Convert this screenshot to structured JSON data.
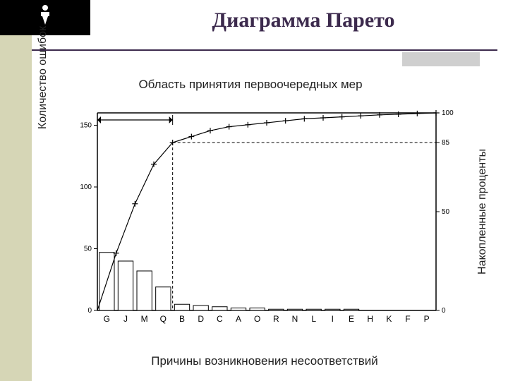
{
  "page": {
    "title": "Диаграмма Парето",
    "background": "#ffffff",
    "strip_color": "#d6d6b6",
    "hr_color": "#3c2a4d",
    "grey_block": "#cfcfcf"
  },
  "chart": {
    "type": "pareto",
    "title": "Область принятия первоочередных мер",
    "ylabel_left": "Количество ошибок",
    "ylabel_right": "Накопленные проценты",
    "xlabel": "Причины возникновения несоответствий",
    "title_fontsize": 17,
    "label_fontsize": 16,
    "tick_fontsize": 10,
    "background_color": "#ffffff",
    "axis_color": "#000000",
    "bar_fill": "#ffffff",
    "bar_stroke": "#000000",
    "line_color": "#000000",
    "dash_color": "#000000",
    "arrow_color": "#000000",
    "categories": [
      "G",
      "J",
      "M",
      "Q",
      "B",
      "D",
      "C",
      "A",
      "O",
      "R",
      "N",
      "L",
      "I",
      "E",
      "H",
      "K",
      "F",
      "P"
    ],
    "bar_values": [
      47,
      40,
      32,
      19,
      5,
      4,
      3,
      2,
      2,
      1,
      1,
      1,
      1,
      1,
      0,
      0,
      0,
      0
    ],
    "cumulative_pct": [
      29,
      54,
      74,
      85,
      88,
      91,
      93,
      94,
      95,
      96,
      97,
      97.5,
      98,
      98.5,
      99,
      99.3,
      99.7,
      100
    ],
    "left_axis": {
      "min": 0,
      "max": 160,
      "ticks": [
        0,
        50,
        100,
        150
      ]
    },
    "right_axis": {
      "min": 0,
      "max": 100,
      "ticks": [
        0,
        50,
        85,
        100
      ]
    },
    "bar_width": 0.8,
    "line_width": 1.2,
    "arrow_x_index": 3,
    "ref_pct": 85
  }
}
